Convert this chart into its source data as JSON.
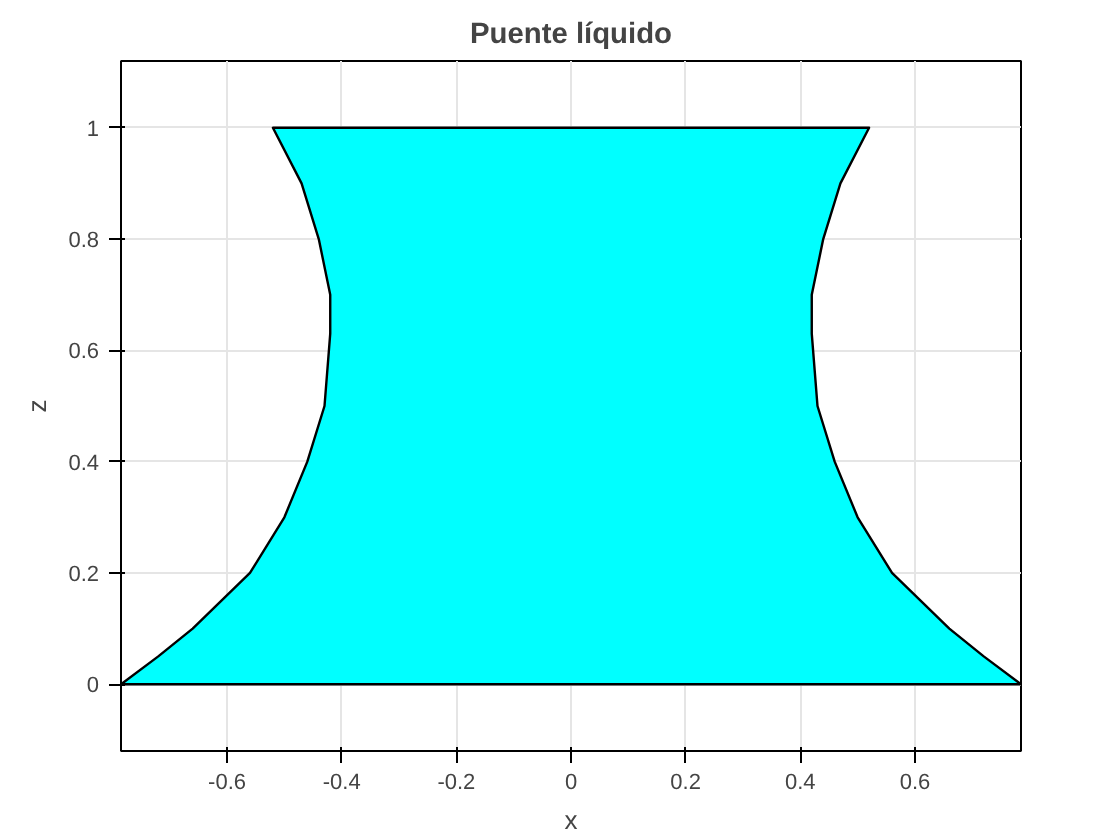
{
  "chart_data": {
    "type": "area",
    "title": "Puente líquido",
    "xlabel": "x",
    "ylabel": "z",
    "xlim": [
      -0.785,
      0.785
    ],
    "ylim": [
      -0.12,
      1.12
    ],
    "xticks": [
      -0.6,
      -0.4,
      -0.2,
      0,
      0.2,
      0.4,
      0.6
    ],
    "yticks": [
      0,
      0.2,
      0.4,
      0.6,
      0.8,
      1
    ],
    "grid": true,
    "series": [
      {
        "color": "#00ffff",
        "x": [
          -0.785,
          -0.72,
          -0.66,
          -0.56,
          -0.5,
          -0.46,
          -0.43,
          -0.42,
          -0.42,
          -0.44,
          -0.47,
          -0.52,
          0.52,
          0.47,
          0.44,
          0.42,
          0.42,
          0.43,
          0.46,
          0.5,
          0.56,
          0.66,
          0.72,
          0.785
        ],
        "values": [
          0,
          0.05,
          0.1,
          0.2,
          0.3,
          0.4,
          0.5,
          0.63,
          0.7,
          0.8,
          0.9,
          1,
          1,
          0.9,
          0.8,
          0.7,
          0.63,
          0.5,
          0.4,
          0.3,
          0.2,
          0.1,
          0.05,
          0
        ]
      }
    ]
  }
}
